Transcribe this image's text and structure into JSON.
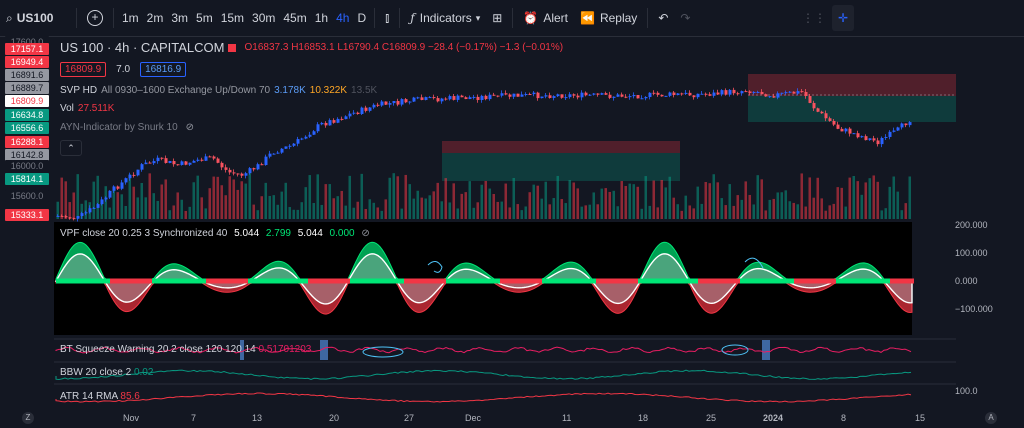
{
  "toolbar": {
    "symbol": "US100",
    "timeframes": [
      "1m",
      "2m",
      "3m",
      "5m",
      "15m",
      "30m",
      "45m",
      "1h",
      "4h",
      "D"
    ],
    "active_timeframe": "4h",
    "indicators_label": "Indicators",
    "alert_label": "Alert",
    "replay_label": "Replay"
  },
  "price_tags": [
    {
      "text": "17600.0",
      "color": "#131722",
      "fg": "#787b86"
    },
    {
      "text": "17157.1",
      "color": "#f23645",
      "fg": "#ffffff"
    },
    {
      "text": "16949.4",
      "color": "#f23645",
      "fg": "#ffffff"
    },
    {
      "text": "16891.6",
      "color": "#9598a1",
      "fg": "#131722"
    },
    {
      "text": "16889.7",
      "color": "#9598a1",
      "fg": "#131722"
    },
    {
      "text": "16809.9",
      "color": "#ffffff",
      "fg": "#f23645"
    },
    {
      "text": "16634.8",
      "color": "#089981",
      "fg": "#ffffff"
    },
    {
      "text": "16556.6",
      "color": "#089981",
      "fg": "#ffffff"
    },
    {
      "text": "16288.1",
      "color": "#f23645",
      "fg": "#ffffff"
    },
    {
      "text": "16142.8",
      "color": "#9598a1",
      "fg": "#131722"
    },
    {
      "text": "16000.0",
      "color": "#131722",
      "fg": "#787b86"
    },
    {
      "text": "15814.1",
      "color": "#089981",
      "fg": "#ffffff"
    },
    {
      "text": "15600.0",
      "color": "#131722",
      "fg": "#787b86"
    },
    {
      "text": "15333.1",
      "color": "#f23645",
      "fg": "#ffffff"
    }
  ],
  "legend": {
    "title": "US 100 · 4h · CAPITALCOM",
    "ohlc": "O16837.3 H16853.1 L16790.4 C16809.9 −28.4 (−0.17%) −1.3 (−0.01%)",
    "bid": "16809.9",
    "spread": "7.0",
    "ask": "16816.9",
    "svp_label": "SVP HD",
    "svp_params": "All 0930–1600 Exchange Up/Down 70",
    "svp_v1": "3.178K",
    "svp_v2": "10.322K",
    "svp_v3": "13.5K",
    "vol_label": "Vol",
    "vol_value": "27.511K",
    "ayn_label": "AYN-Indicator by Snurk 10"
  },
  "vpf": {
    "label": "VPF close 20 0.25 3 Synchronized 40",
    "v1": "5.044",
    "v2": "2.799",
    "v3": "5.044",
    "v4": "0.000",
    "axis": [
      "200.000",
      "100.000",
      "0.000",
      "−100.000"
    ]
  },
  "bt": {
    "label": "BT Squeeze Warning 20 2 close 120 120 14",
    "value": "0.51701203"
  },
  "bbw": {
    "label": "BBW 20 close 2",
    "value": "0.02"
  },
  "atr": {
    "label": "ATR 14 RMA",
    "value": "85.6"
  },
  "atr_axis": "100.0",
  "dates": [
    "Nov",
    "7",
    "13",
    "20",
    "27",
    "Dec",
    "11",
    "18",
    "25",
    "2024",
    "8",
    "15"
  ],
  "colors": {
    "bull": "#2962ff",
    "bear": "#f7525f",
    "green": "#00e676",
    "red": "#f23645",
    "teal": "#089981"
  }
}
